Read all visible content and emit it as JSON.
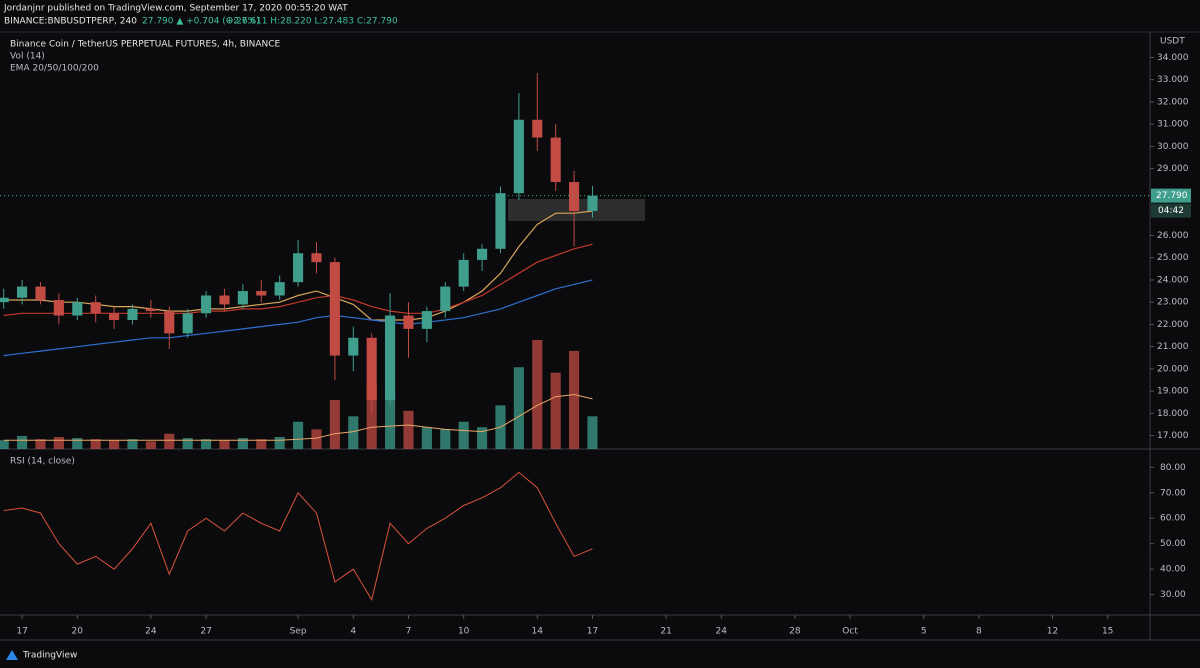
{
  "header": {
    "publisher": "Jordanjnr published on TradingView.com, September 17, 2020 00:55:20 WAT",
    "symbol": "BINANCE:BNBUSDTPERP, 240",
    "change": "27.790 ▲ +0.704 (+2.6%)",
    "ohlc": "O:27.611 H:28.220 L:27.483 C:27.790"
  },
  "footer": {
    "brand": "TradingView"
  },
  "chart_data": {
    "type": "candlestick",
    "title": "Binance Coin / TetherUS PERPETUAL FUTURES, 4h, BINANCE",
    "volume_label": "Vol (14)",
    "ema_label": "EMA 20/50/100/200",
    "rsi_label": "RSI (14, close)",
    "currency": "USDT",
    "last_price": {
      "value": 27.79,
      "label": "27.790"
    },
    "countdown": "04:42",
    "up_color": "#3f9e8c",
    "down_color": "#c24b44",
    "xlim": [
      -1.2,
      61.3
    ],
    "xticks": [
      {
        "value": 0,
        "label": "17"
      },
      {
        "value": 3,
        "label": "20"
      },
      {
        "value": 7,
        "label": "24"
      },
      {
        "value": 10,
        "label": "27"
      },
      {
        "value": 15,
        "label": "Sep"
      },
      {
        "value": 18,
        "label": "4"
      },
      {
        "value": 21,
        "label": "7"
      },
      {
        "value": 24,
        "label": "10"
      },
      {
        "value": 28,
        "label": "14"
      },
      {
        "value": 31,
        "label": "17"
      },
      {
        "value": 35,
        "label": "21"
      },
      {
        "value": 38,
        "label": "24"
      },
      {
        "value": 42,
        "label": "28"
      },
      {
        "value": 45,
        "label": "Oct"
      },
      {
        "value": 49,
        "label": "5"
      },
      {
        "value": 52,
        "label": "8"
      },
      {
        "value": 56,
        "label": "12"
      },
      {
        "value": 59,
        "label": "15"
      }
    ],
    "ylim": [
      16.4,
      35.1
    ],
    "yticks": [
      {
        "value": 17,
        "label": "17.000"
      },
      {
        "value": 18,
        "label": "18.000"
      },
      {
        "value": 19,
        "label": "19.000"
      },
      {
        "value": 20,
        "label": "20.000"
      },
      {
        "value": 21,
        "label": "21.000"
      },
      {
        "value": 22,
        "label": "22.000"
      },
      {
        "value": 23,
        "label": "23.000"
      },
      {
        "value": 24,
        "label": "24.000"
      },
      {
        "value": 25,
        "label": "25.000"
      },
      {
        "value": 26,
        "label": "26.000"
      },
      {
        "value": 29,
        "label": "29.000"
      },
      {
        "value": 30,
        "label": "30.000"
      },
      {
        "value": 31,
        "label": "31.000"
      },
      {
        "value": 32,
        "label": "32.000"
      },
      {
        "value": 33,
        "label": "33.000"
      },
      {
        "value": 34,
        "label": "34.000"
      }
    ],
    "candles": {
      "x": [
        -1,
        0,
        1,
        2,
        3,
        4,
        5,
        6,
        7,
        8,
        9,
        10,
        11,
        12,
        13,
        14,
        15,
        16,
        17,
        18,
        19,
        20,
        21,
        22,
        23,
        24,
        25,
        26,
        27,
        28,
        29,
        30,
        31
      ],
      "open": [
        23.0,
        23.2,
        23.7,
        23.1,
        22.4,
        23.0,
        22.5,
        22.2,
        22.7,
        22.6,
        21.6,
        22.5,
        23.3,
        22.9,
        23.5,
        23.3,
        23.9,
        25.2,
        24.8,
        20.6,
        21.4,
        18.6,
        22.4,
        21.8,
        22.6,
        23.7,
        24.9,
        25.4,
        27.9,
        31.2,
        30.4,
        28.4,
        27.1
      ],
      "high": [
        23.6,
        24.0,
        23.9,
        23.4,
        23.2,
        23.3,
        22.8,
        22.9,
        23.1,
        22.8,
        22.7,
        23.5,
        23.6,
        23.8,
        24.0,
        24.2,
        25.8,
        25.7,
        25.0,
        21.9,
        21.6,
        23.4,
        23.0,
        22.8,
        23.9,
        25.2,
        25.6,
        28.2,
        32.4,
        33.3,
        31.0,
        28.9,
        28.22
      ],
      "low": [
        22.7,
        22.9,
        22.9,
        22.0,
        22.2,
        22.1,
        21.8,
        22.0,
        22.3,
        20.9,
        21.4,
        22.3,
        22.6,
        22.7,
        23.0,
        23.1,
        23.7,
        24.3,
        19.5,
        19.9,
        18.0,
        18.4,
        20.5,
        21.2,
        22.3,
        23.5,
        24.4,
        25.2,
        27.6,
        29.8,
        28.0,
        25.5,
        26.8
      ],
      "close": [
        23.2,
        23.7,
        23.1,
        22.4,
        23.0,
        22.5,
        22.2,
        22.7,
        22.6,
        21.6,
        22.5,
        23.3,
        22.9,
        23.5,
        23.3,
        23.9,
        25.2,
        24.8,
        20.6,
        21.4,
        18.6,
        22.4,
        21.8,
        22.6,
        23.7,
        24.9,
        25.4,
        27.9,
        31.2,
        30.4,
        28.4,
        27.1,
        27.79
      ]
    },
    "ema": [
      {
        "color": "#d9a35b",
        "values": [
          23.1,
          23.1,
          23.1,
          23.0,
          23.0,
          22.9,
          22.8,
          22.8,
          22.7,
          22.6,
          22.6,
          22.7,
          22.7,
          22.8,
          22.9,
          23.0,
          23.3,
          23.5,
          23.2,
          22.9,
          22.2,
          22.2,
          22.2,
          22.3,
          22.6,
          23.0,
          23.5,
          24.3,
          25.5,
          26.5,
          27.0,
          27.0,
          27.1
        ]
      },
      {
        "color": "#c0392b",
        "values": [
          22.4,
          22.5,
          22.5,
          22.5,
          22.5,
          22.5,
          22.5,
          22.5,
          22.5,
          22.5,
          22.5,
          22.6,
          22.6,
          22.7,
          22.7,
          22.8,
          23.0,
          23.2,
          23.3,
          23.1,
          22.8,
          22.6,
          22.5,
          22.5,
          22.7,
          23.0,
          23.3,
          23.8,
          24.3,
          24.8,
          25.1,
          25.4,
          25.6
        ]
      },
      {
        "color": "#2f6fd0",
        "values": [
          20.6,
          20.7,
          20.8,
          20.9,
          21.0,
          21.1,
          21.2,
          21.3,
          21.4,
          21.4,
          21.5,
          21.6,
          21.7,
          21.8,
          21.9,
          22.0,
          22.1,
          22.3,
          22.4,
          22.3,
          22.2,
          22.1,
          22.0,
          22.1,
          22.2,
          22.3,
          22.5,
          22.7,
          23.0,
          23.3,
          23.6,
          23.8,
          24.0
        ]
      }
    ],
    "volume": {
      "color_alpha": 0.75,
      "ylim": [
        0,
        100
      ],
      "values": [
        8,
        12,
        9,
        11,
        10,
        9,
        8,
        9,
        7,
        14,
        10,
        9,
        8,
        10,
        9,
        11,
        25,
        18,
        45,
        30,
        60,
        55,
        35,
        20,
        18,
        25,
        20,
        40,
        75,
        100,
        70,
        90,
        30
      ],
      "ma": [
        8,
        8,
        8,
        8,
        8,
        8,
        8,
        8,
        8,
        8,
        8,
        8,
        8,
        8,
        8,
        8,
        9,
        10,
        14,
        16,
        20,
        21,
        22,
        20,
        18,
        17,
        16,
        20,
        30,
        40,
        48,
        50,
        46
      ],
      "ma_color": "#e9a766"
    },
    "rsi": {
      "color": "#d9533d",
      "ylim": [
        22,
        86
      ],
      "yticks": [
        {
          "value": 30,
          "label": "30.00"
        },
        {
          "value": 40,
          "label": "40.00"
        },
        {
          "value": 50,
          "label": "50.00"
        },
        {
          "value": 60,
          "label": "60.00"
        },
        {
          "value": 70,
          "label": "70.00"
        },
        {
          "value": 80,
          "label": "80.00"
        }
      ],
      "values": [
        63,
        64,
        62,
        50,
        42,
        45,
        40,
        48,
        58,
        38,
        55,
        60,
        55,
        62,
        58,
        55,
        70,
        62,
        35,
        40,
        28,
        58,
        50,
        56,
        60,
        65,
        68,
        72,
        78,
        72,
        58,
        45,
        48
      ]
    }
  }
}
